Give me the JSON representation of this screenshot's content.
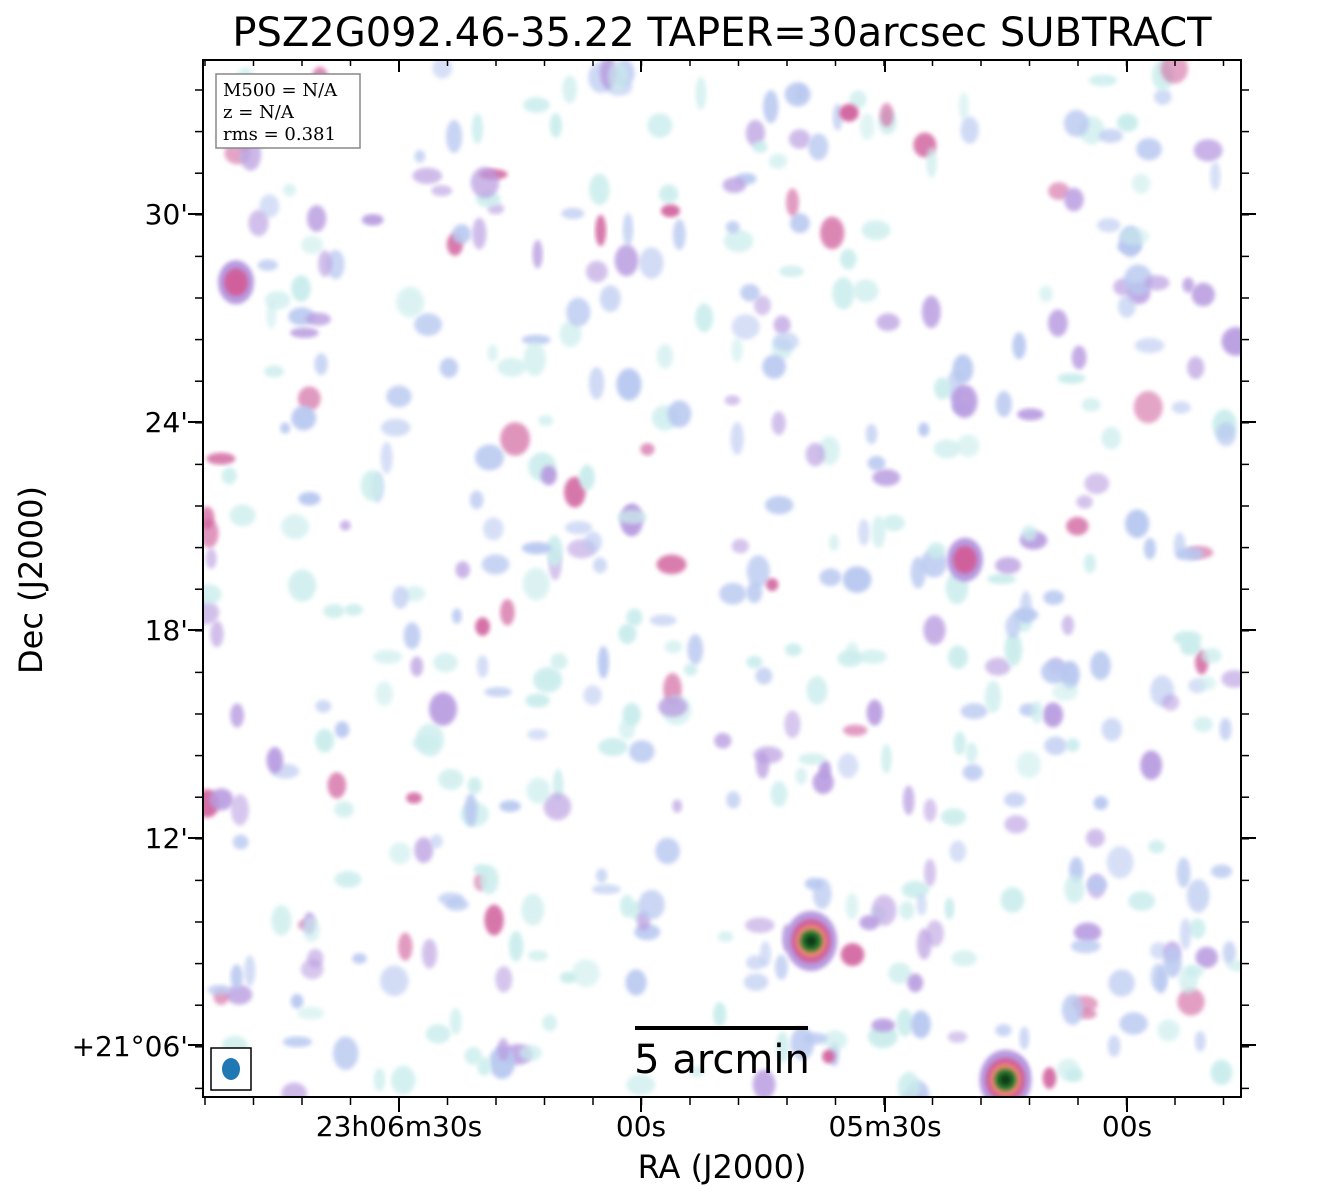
{
  "chart_data": {
    "type": "heatmap",
    "title": "PSZ2G092.46-35.22 TAPER=30arcsec SUBTRACT",
    "xlabel": "RA (J2000)",
    "ylabel": "Dec (J2000)",
    "x_tick_labels": [
      "23h06m30s",
      "00s",
      "05m30s",
      "00s"
    ],
    "y_tick_labels": [
      "30'",
      "24'",
      "18'",
      "12'",
      "+21°06'"
    ],
    "info_box": [
      "M500 = N/A",
      "z = N/A",
      "rms = 0.381"
    ],
    "scalebar": {
      "label": "5 arcmin",
      "length_arcmin": 5
    },
    "beam_marker_color": "#1f77b4",
    "colormap": [
      "#ffffff",
      "#c9ecec",
      "#b8c8f0",
      "#b89be0",
      "#d0609c",
      "#f08a6a",
      "#2e7d32",
      "#0b3d14"
    ],
    "sources": [
      {
        "ra": "23h05m39s",
        "dec": "+21°09'",
        "level": "strong"
      },
      {
        "ra": "23h05m15s",
        "dec": "+21°05'",
        "level": "strong"
      },
      {
        "ra": "23h06m50s",
        "dec": "+21°28'",
        "level": "moderate"
      },
      {
        "ra": "23h05m20s",
        "dec": "+21°20'",
        "level": "moderate"
      }
    ],
    "grid": false
  }
}
